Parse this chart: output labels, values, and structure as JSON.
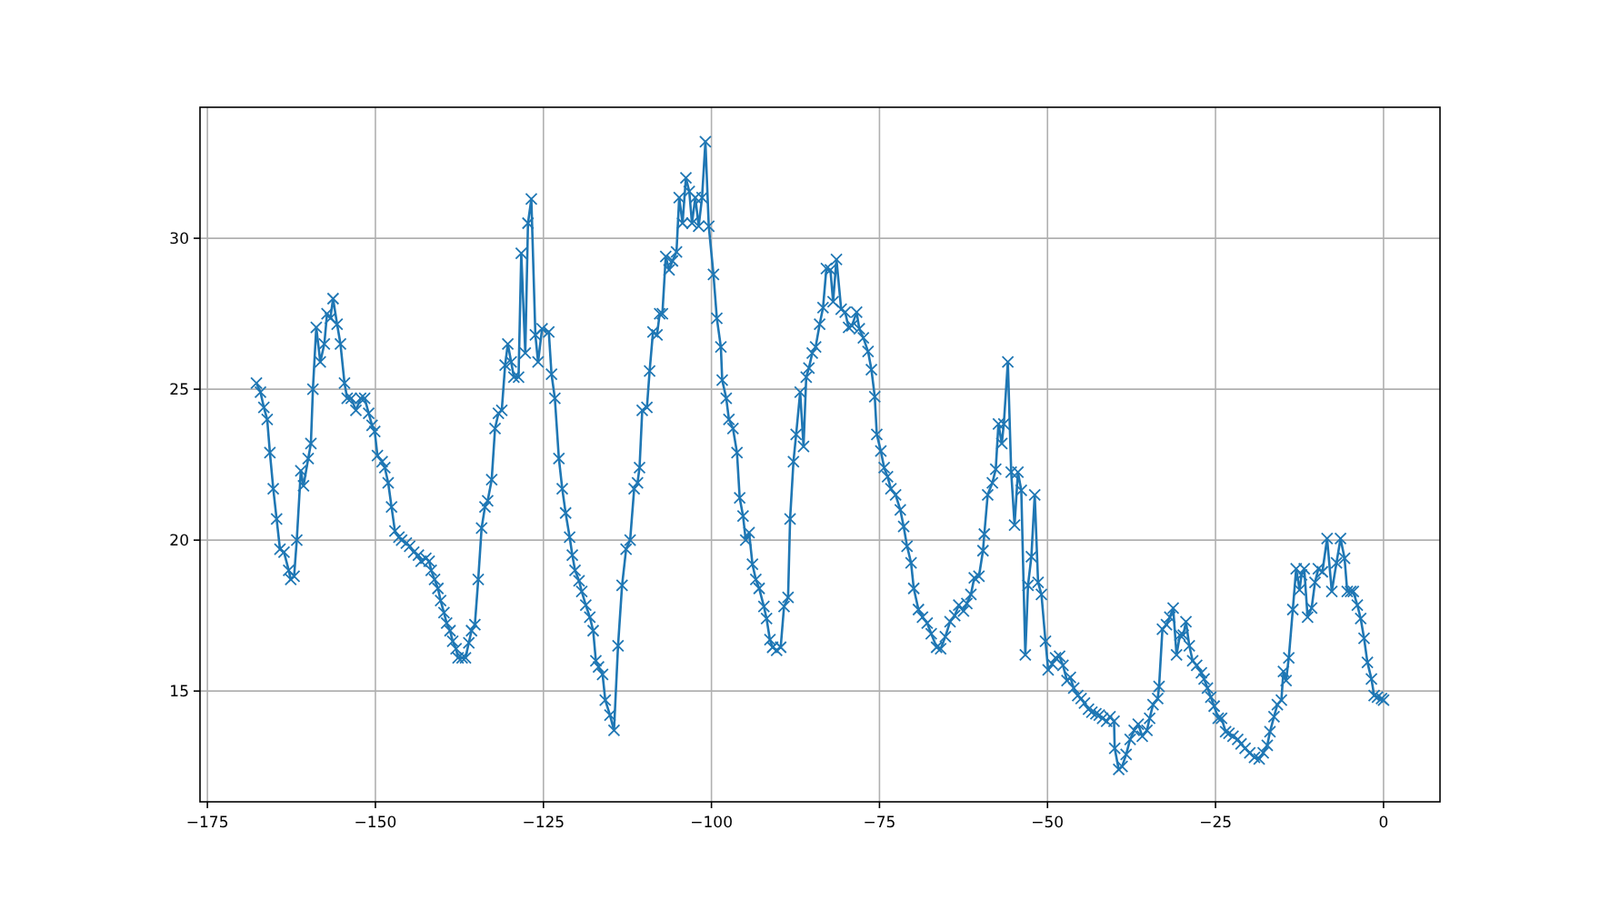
{
  "chart_data": {
    "type": "line",
    "marker": "cross",
    "grid": true,
    "xlim": [
      -176.1,
      8.4
    ],
    "ylim": [
      11.33,
      34.34
    ],
    "xticks": [
      {
        "value": -175,
        "label": "−175"
      },
      {
        "value": -150,
        "label": "−150"
      },
      {
        "value": -125,
        "label": "−125"
      },
      {
        "value": -100,
        "label": "−100"
      },
      {
        "value": -75,
        "label": "−75"
      },
      {
        "value": -50,
        "label": "−50"
      },
      {
        "value": -25,
        "label": "−25"
      },
      0
    ],
    "yticks": [
      15,
      20,
      25,
      30
    ],
    "series": [
      {
        "color": "#1f77b4",
        "x": [
          -167.7,
          -167.1,
          -166.6,
          -166.1,
          -165.7,
          -165.2,
          -164.7,
          -164.2,
          -163.6,
          -162.9,
          -162.6,
          -162.1,
          -161.7,
          -161.1,
          -160.7,
          -160.0,
          -159.6,
          -159.3,
          -158.8,
          -158.2,
          -157.6,
          -157.2,
          -156.7,
          -156.3,
          -155.7,
          -155.2,
          -154.6,
          -154.2,
          -153.6,
          -152.9,
          -152.2,
          -151.6,
          -151.0,
          -150.5,
          -150.1,
          -149.7,
          -149.0,
          -148.6,
          -148.1,
          -147.6,
          -147.1,
          -146.5,
          -146.1,
          -145.4,
          -144.9,
          -144.3,
          -143.6,
          -143.2,
          -142.5,
          -142.0,
          -141.7,
          -141.2,
          -140.7,
          -140.3,
          -139.8,
          -139.4,
          -138.9,
          -138.5,
          -138.0,
          -137.7,
          -137.1,
          -136.6,
          -136.1,
          -135.7,
          -135.2,
          -134.7,
          -134.2,
          -133.7,
          -133.3,
          -132.7,
          -132.2,
          -131.7,
          -131.2,
          -130.7,
          -130.3,
          -129.8,
          -129.4,
          -128.7,
          -128.3,
          -127.7,
          -127.3,
          -126.8,
          -126.2,
          -125.8,
          -125.2,
          -124.2,
          -123.8,
          -123.3,
          -122.7,
          -122.2,
          -121.7,
          -121.1,
          -120.7,
          -120.3,
          -119.7,
          -119.3,
          -118.7,
          -118.1,
          -117.6,
          -117.2,
          -116.8,
          -116.2,
          -115.8,
          -115.1,
          -114.5,
          -113.9,
          -113.3,
          -112.7,
          -112.1,
          -111.5,
          -111.0,
          -110.7,
          -110.3,
          -109.6,
          -109.2,
          -108.7,
          -108.1,
          -107.7,
          -107.3,
          -106.8,
          -106.3,
          -105.8,
          -105.2,
          -104.8,
          -104.3,
          -103.8,
          -103.3,
          -102.9,
          -102.4,
          -101.9,
          -101.4,
          -100.9,
          -100.4,
          -99.7,
          -99.2,
          -98.6,
          -98.4,
          -97.8,
          -97.4,
          -96.8,
          -96.2,
          -95.8,
          -95.3,
          -94.9,
          -94.4,
          -93.9,
          -93.4,
          -92.9,
          -92.2,
          -91.8,
          -91.3,
          -90.9,
          -90.3,
          -89.7,
          -89.2,
          -88.6,
          -88.3,
          -87.8,
          -87.4,
          -86.8,
          -86.3,
          -85.9,
          -85.5,
          -85.0,
          -84.5,
          -83.9,
          -83.4,
          -82.9,
          -82.3,
          -81.9,
          -81.4,
          -80.7,
          -80.1,
          -79.6,
          -79.1,
          -78.4,
          -78.0,
          -77.4,
          -76.7,
          -76.2,
          -75.7,
          -75.4,
          -74.8,
          -74.3,
          -73.8,
          -73.3,
          -72.6,
          -71.9,
          -71.4,
          -70.9,
          -70.3,
          -69.9,
          -69.2,
          -68.6,
          -67.9,
          -67.3,
          -66.5,
          -65.9,
          -65.2,
          -64.5,
          -63.8,
          -63.2,
          -62.5,
          -62.0,
          -61.4,
          -60.9,
          -60.2,
          -59.6,
          -59.4,
          -58.9,
          -58.2,
          -57.7,
          -57.3,
          -56.8,
          -56.5,
          -55.9,
          -55.4,
          -54.9,
          -54.4,
          -53.9,
          -53.3,
          -52.9,
          -52.4,
          -51.9,
          -51.4,
          -50.9,
          -50.3,
          -49.9,
          -49.3,
          -48.8,
          -48.2,
          -47.7,
          -47.1,
          -46.6,
          -46.1,
          -45.5,
          -45.0,
          -44.5,
          -43.9,
          -43.4,
          -42.8,
          -42.3,
          -41.8,
          -41.2,
          -40.7,
          -40.1,
          -40.0,
          -39.4,
          -38.9,
          -38.3,
          -37.7,
          -37.1,
          -36.5,
          -35.9,
          -35.2,
          -34.8,
          -34.3,
          -33.6,
          -33.4,
          -32.9,
          -32.3,
          -31.8,
          -31.3,
          -30.8,
          -30.3,
          -29.8,
          -29.4,
          -28.9,
          -28.4,
          -27.8,
          -27.1,
          -26.7,
          -26.2,
          -25.7,
          -25.2,
          -24.6,
          -24.1,
          -23.5,
          -23.0,
          -22.4,
          -21.7,
          -21.2,
          -20.6,
          -19.9,
          -19.2,
          -18.5,
          -17.9,
          -17.3,
          -16.9,
          -16.3,
          -15.8,
          -15.2,
          -14.9,
          -14.5,
          -14.1,
          -13.5,
          -13.0,
          -12.5,
          -12.2,
          -11.8,
          -11.3,
          -10.7,
          -10.2,
          -9.7,
          -9.1,
          -8.4,
          -7.7,
          -7.0,
          -6.4,
          -5.8,
          -5.4,
          -4.9,
          -4.5,
          -3.9,
          -3.4,
          -2.9,
          -2.4,
          -1.8,
          -1.4,
          -0.9,
          -0.3,
          0
        ],
        "values": [
          25.2,
          24.9,
          24.4,
          24.0,
          22.9,
          21.7,
          20.7,
          19.7,
          19.6,
          19.0,
          18.7,
          18.8,
          20.0,
          22.3,
          21.8,
          22.7,
          23.2,
          25.0,
          27.05,
          25.9,
          26.5,
          27.5,
          27.35,
          28.0,
          27.15,
          26.5,
          25.2,
          24.7,
          24.7,
          24.3,
          24.7,
          24.7,
          24.2,
          23.8,
          23.6,
          22.8,
          22.6,
          22.4,
          21.9,
          21.1,
          20.3,
          20.1,
          20.0,
          19.9,
          19.8,
          19.6,
          19.5,
          19.3,
          19.4,
          19.3,
          19.0,
          18.7,
          18.4,
          18.0,
          17.6,
          17.25,
          17.0,
          16.65,
          16.4,
          16.1,
          16.1,
          16.1,
          16.6,
          17.0,
          17.2,
          18.7,
          20.4,
          21.1,
          21.3,
          22.0,
          23.7,
          24.2,
          24.3,
          25.8,
          26.5,
          25.9,
          25.4,
          25.4,
          29.5,
          26.2,
          30.5,
          31.3,
          26.8,
          25.9,
          27.0,
          26.9,
          25.5,
          24.7,
          22.7,
          21.7,
          20.9,
          20.1,
          19.5,
          19.0,
          18.65,
          18.3,
          17.85,
          17.45,
          17.0,
          16.0,
          15.8,
          15.55,
          14.7,
          14.2,
          13.7,
          16.5,
          18.5,
          19.7,
          20.0,
          21.7,
          21.9,
          22.4,
          24.3,
          24.4,
          25.6,
          26.9,
          26.8,
          27.5,
          27.5,
          29.4,
          28.95,
          29.25,
          29.55,
          31.35,
          30.5,
          32.0,
          31.55,
          30.5,
          31.35,
          30.4,
          31.35,
          33.2,
          30.4,
          28.8,
          27.35,
          26.4,
          25.3,
          24.7,
          24.0,
          23.7,
          22.9,
          21.4,
          20.8,
          20.0,
          20.25,
          19.2,
          18.7,
          18.4,
          17.8,
          17.4,
          16.7,
          16.45,
          16.35,
          16.45,
          17.8,
          18.1,
          20.7,
          22.6,
          23.5,
          24.9,
          23.1,
          25.4,
          25.7,
          26.2,
          26.4,
          27.15,
          27.7,
          29.0,
          28.95,
          27.9,
          29.3,
          27.65,
          27.55,
          27.05,
          27.1,
          27.55,
          27.0,
          26.7,
          26.25,
          25.65,
          24.75,
          23.5,
          22.95,
          22.4,
          22.1,
          21.7,
          21.5,
          21.0,
          20.45,
          19.8,
          19.25,
          18.4,
          17.7,
          17.45,
          17.25,
          16.9,
          16.45,
          16.4,
          16.8,
          17.3,
          17.5,
          17.85,
          17.65,
          17.9,
          18.2,
          18.75,
          18.8,
          19.65,
          20.2,
          21.5,
          21.9,
          22.35,
          23.85,
          23.2,
          23.85,
          25.9,
          22.25,
          20.5,
          22.25,
          21.65,
          16.2,
          18.5,
          19.45,
          21.5,
          18.6,
          18.2,
          16.65,
          15.7,
          15.9,
          16.1,
          16.15,
          15.85,
          15.35,
          15.45,
          15.1,
          14.85,
          14.75,
          14.6,
          14.4,
          14.3,
          14.25,
          14.2,
          14.1,
          14.0,
          14.15,
          14.0,
          13.1,
          12.4,
          12.5,
          12.9,
          13.4,
          13.7,
          13.9,
          13.5,
          13.7,
          14.1,
          14.55,
          14.75,
          15.15,
          17.05,
          17.2,
          17.45,
          17.75,
          16.2,
          16.85,
          16.85,
          17.3,
          16.5,
          16.0,
          15.85,
          15.6,
          15.4,
          15.1,
          14.8,
          14.5,
          14.1,
          14.1,
          13.65,
          13.6,
          13.5,
          13.4,
          13.25,
          13.1,
          12.95,
          12.8,
          12.75,
          12.95,
          13.2,
          13.65,
          14.15,
          14.55,
          14.7,
          15.65,
          15.35,
          16.1,
          17.7,
          19.05,
          18.35,
          18.85,
          19.05,
          17.45,
          17.75,
          18.6,
          19.05,
          18.95,
          20.05,
          18.3,
          19.25,
          20.05,
          19.4,
          18.3,
          18.3,
          18.3,
          17.85,
          17.4,
          16.75,
          15.95,
          15.4,
          14.85,
          14.8,
          14.75,
          14.7
        ]
      }
    ]
  }
}
